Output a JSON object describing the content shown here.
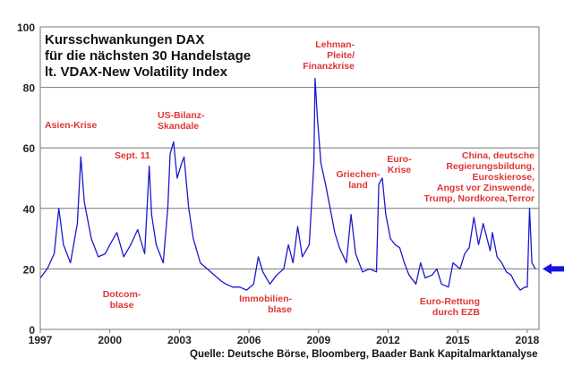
{
  "chart_data": {
    "type": "line",
    "title": "Kursschwankungen DAX\nfür die nächsten 30 Handelstage\nlt. VDAX-New Volatility Index",
    "title_lines": [
      "Kursschwankungen DAX",
      "für die nächsten 30 Handelstage",
      "lt. VDAX-New Volatility Index"
    ],
    "xlabel": "",
    "ylabel": "",
    "xlim": [
      1997,
      2018.5
    ],
    "ylim": [
      0,
      100
    ],
    "x_ticks": [
      1997,
      2000,
      2003,
      2006,
      2009,
      2012,
      2015,
      2018
    ],
    "y_ticks": [
      0,
      20,
      40,
      60,
      80,
      100
    ],
    "grid": "horizontal",
    "series": [
      {
        "color": "#1a1acc",
        "x": [
          1997.0,
          1997.3,
          1997.6,
          1997.8,
          1998.0,
          1998.3,
          1998.6,
          1998.75,
          1998.9,
          1999.2,
          1999.5,
          1999.8,
          2000.0,
          2000.3,
          2000.6,
          2000.9,
          2001.2,
          2001.5,
          2001.7,
          2001.8,
          2002.0,
          2002.3,
          2002.5,
          2002.6,
          2002.75,
          2002.9,
          2003.1,
          2003.2,
          2003.4,
          2003.6,
          2003.9,
          2004.2,
          2004.5,
          2004.8,
          2005.0,
          2005.3,
          2005.6,
          2005.9,
          2006.2,
          2006.4,
          2006.6,
          2006.9,
          2007.2,
          2007.5,
          2007.7,
          2007.9,
          2008.1,
          2008.3,
          2008.6,
          2008.8,
          2008.85,
          2008.95,
          2009.1,
          2009.3,
          2009.5,
          2009.7,
          2009.9,
          2010.2,
          2010.4,
          2010.6,
          2010.9,
          2011.2,
          2011.5,
          2011.6,
          2011.75,
          2011.9,
          2012.1,
          2012.3,
          2012.5,
          2012.7,
          2012.9,
          2013.2,
          2013.4,
          2013.6,
          2013.9,
          2014.1,
          2014.3,
          2014.6,
          2014.8,
          2015.1,
          2015.3,
          2015.5,
          2015.7,
          2015.9,
          2016.1,
          2016.4,
          2016.5,
          2016.7,
          2016.9,
          2017.1,
          2017.3,
          2017.5,
          2017.7,
          2017.9,
          2018.0,
          2018.1,
          2018.2,
          2018.35
        ],
        "values": [
          17,
          20,
          25,
          40,
          28,
          22,
          35,
          57,
          42,
          30,
          24,
          25,
          28,
          32,
          24,
          28,
          33,
          25,
          54,
          38,
          28,
          22,
          40,
          58,
          62,
          50,
          55,
          57,
          40,
          30,
          22,
          20,
          18,
          16,
          15,
          14,
          14,
          13,
          15,
          24,
          19,
          15,
          18,
          20,
          28,
          22,
          34,
          24,
          28,
          55,
          83,
          70,
          55,
          48,
          40,
          32,
          27,
          22,
          38,
          25,
          19,
          20,
          19,
          48,
          50,
          38,
          30,
          28,
          27,
          22,
          18,
          15,
          22,
          17,
          18,
          20,
          15,
          14,
          22,
          20,
          25,
          27,
          37,
          28,
          35,
          26,
          32,
          24,
          22,
          19,
          18,
          15,
          13,
          14,
          14,
          40,
          22,
          20
        ]
      }
    ],
    "current_marker_value": 20,
    "annotations": {
      "asien": "Asien-Krise",
      "sept11": "Sept. 11",
      "usbilanz": [
        "US-Bilanz-",
        "Skandale"
      ],
      "lehman": [
        "Lehman-",
        "Pleite/",
        "Finanzkrise"
      ],
      "griechenland": [
        "Griechen-",
        "land"
      ],
      "eurokrise": [
        "Euro-",
        "Krise"
      ],
      "china": [
        "China, deutsche",
        "Regierungsbildung,",
        "Euroskierose,",
        "Angst vor Zinswende,",
        "Trump, Nordkorea,Terror"
      ],
      "dotcom": [
        "Dotcom-",
        "blase"
      ],
      "immobilien": [
        "Immobilien-",
        "blase"
      ],
      "eurorettung": [
        "Euro-Rettung",
        "durch EZB"
      ]
    },
    "annotation_color": "#e03535",
    "source": "Quelle: Deutsche Börse, Bloomberg, Baader Bank Kapitalmarktanalyse"
  }
}
